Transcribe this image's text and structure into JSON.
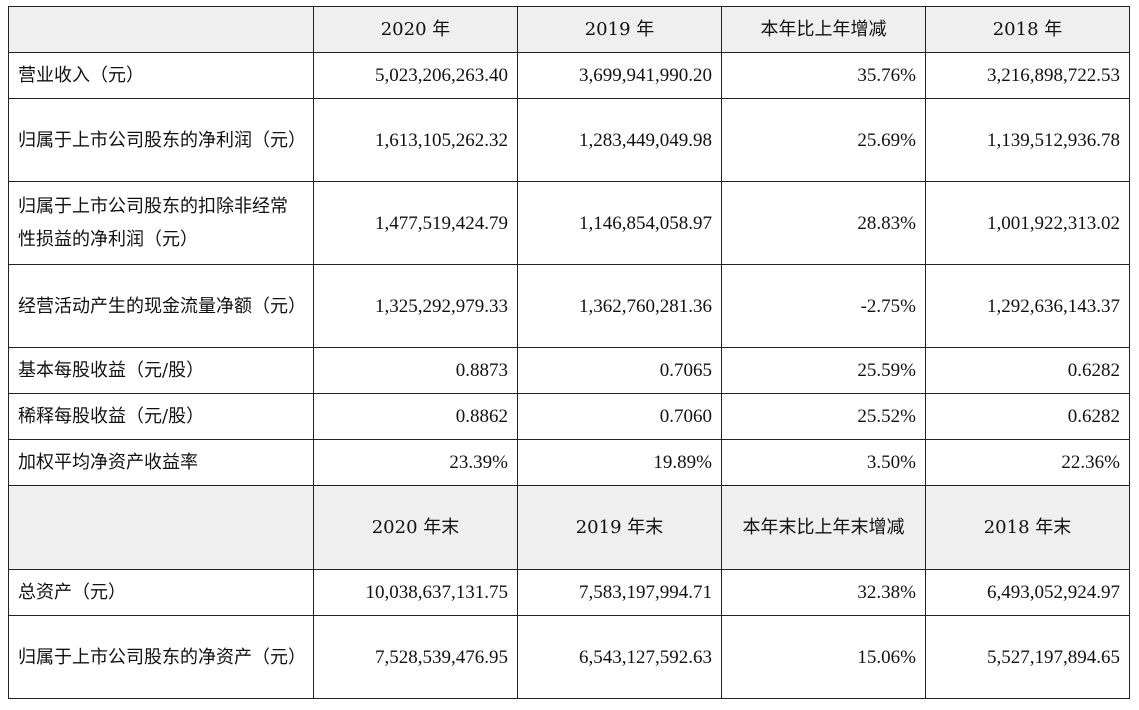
{
  "table": {
    "header": [
      "",
      "2020 年",
      "2019 年",
      "本年比上年增减",
      "2018 年"
    ],
    "rows": [
      {
        "label": "营业收入（元）",
        "v2020": "5,023,206,263.40",
        "v2019": "3,699,941,990.20",
        "change": "35.76%",
        "v2018": "3,216,898,722.53"
      },
      {
        "label": "归属于上市公司股东的净利润（元）",
        "v2020": "1,613,105,262.32",
        "v2019": "1,283,449,049.98",
        "change": "25.69%",
        "v2018": "1,139,512,936.78"
      },
      {
        "label": "归属于上市公司股东的扣除非经常性损益的净利润（元）",
        "v2020": "1,477,519,424.79",
        "v2019": "1,146,854,058.97",
        "change": "28.83%",
        "v2018": "1,001,922,313.02"
      },
      {
        "label": "经营活动产生的现金流量净额（元）",
        "v2020": "1,325,292,979.33",
        "v2019": "1,362,760,281.36",
        "change": "-2.75%",
        "v2018": "1,292,636,143.37"
      },
      {
        "label": "基本每股收益（元/股）",
        "v2020": "0.8873",
        "v2019": "0.7065",
        "change": "25.59%",
        "v2018": "0.6282"
      },
      {
        "label": "稀释每股收益（元/股）",
        "v2020": "0.8862",
        "v2019": "0.7060",
        "change": "25.52%",
        "v2018": "0.6282"
      },
      {
        "label": "加权平均净资产收益率",
        "v2020": "23.39%",
        "v2019": "19.89%",
        "change": "3.50%",
        "v2018": "22.36%"
      }
    ],
    "header2": [
      "",
      "2020 年末",
      "2019 年末",
      "本年末比上年末增减",
      "2018 年末"
    ],
    "rows2": [
      {
        "label": "总资产（元）",
        "v2020": "10,038,637,131.75",
        "v2019": "7,583,197,994.71",
        "change": "32.38%",
        "v2018": "6,493,052,924.97"
      },
      {
        "label": "归属于上市公司股东的净资产（元）",
        "v2020": "7,528,539,476.95",
        "v2019": "6,543,127,592.63",
        "change": "15.06%",
        "v2018": "5,527,197,894.65"
      }
    ]
  }
}
